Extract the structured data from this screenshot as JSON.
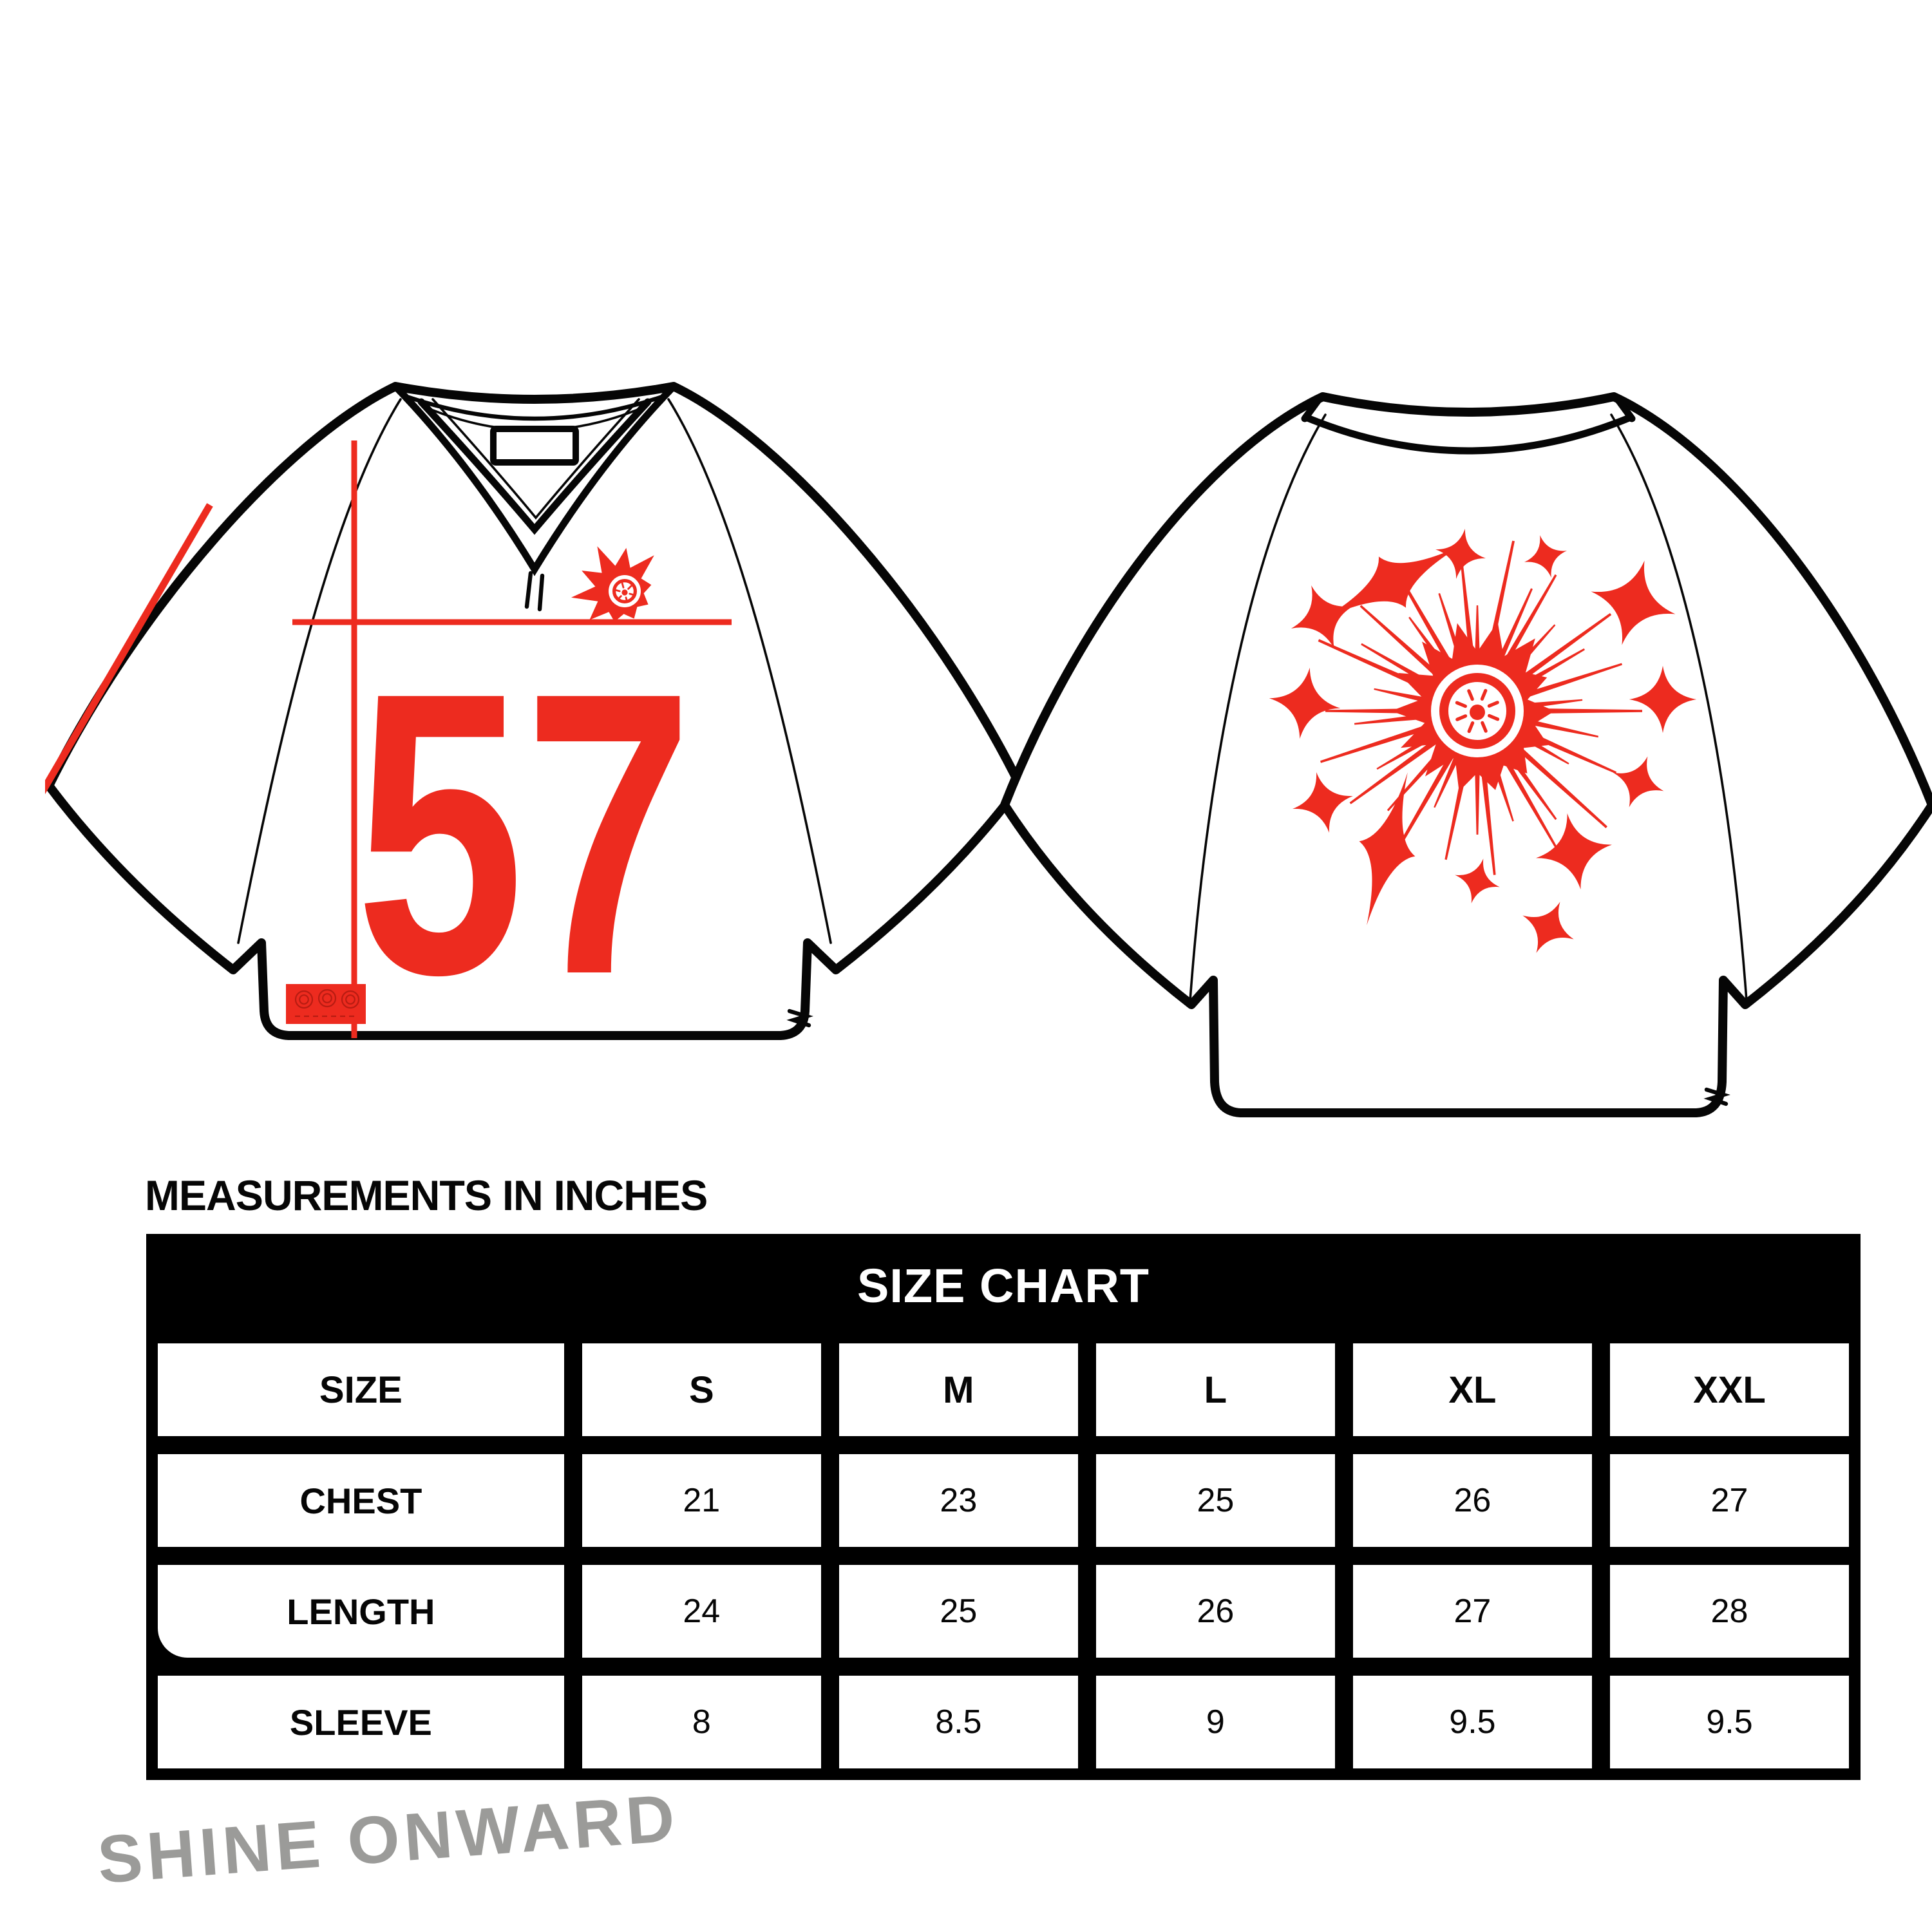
{
  "colors": {
    "red": "#ED2B1F",
    "ink": "#060606",
    "gray": "#9B9B99"
  },
  "front_jersey": {
    "number": "57"
  },
  "measurements_heading": "MEASUREMENTS IN INCHES",
  "size_chart": {
    "title": "SIZE CHART",
    "columns": [
      "SIZE",
      "S",
      "M",
      "L",
      "XL",
      "XXL"
    ],
    "rows": [
      {
        "label": "CHEST",
        "values": [
          "21",
          "23",
          "25",
          "26",
          "27"
        ]
      },
      {
        "label": "LENGTH",
        "values": [
          "24",
          "25",
          "26",
          "27",
          "28"
        ]
      },
      {
        "label": "SLEEVE",
        "values": [
          "8",
          "8.5",
          "9",
          "9.5",
          "9.5"
        ]
      }
    ]
  },
  "footer_text": "SHINE ONWARD"
}
